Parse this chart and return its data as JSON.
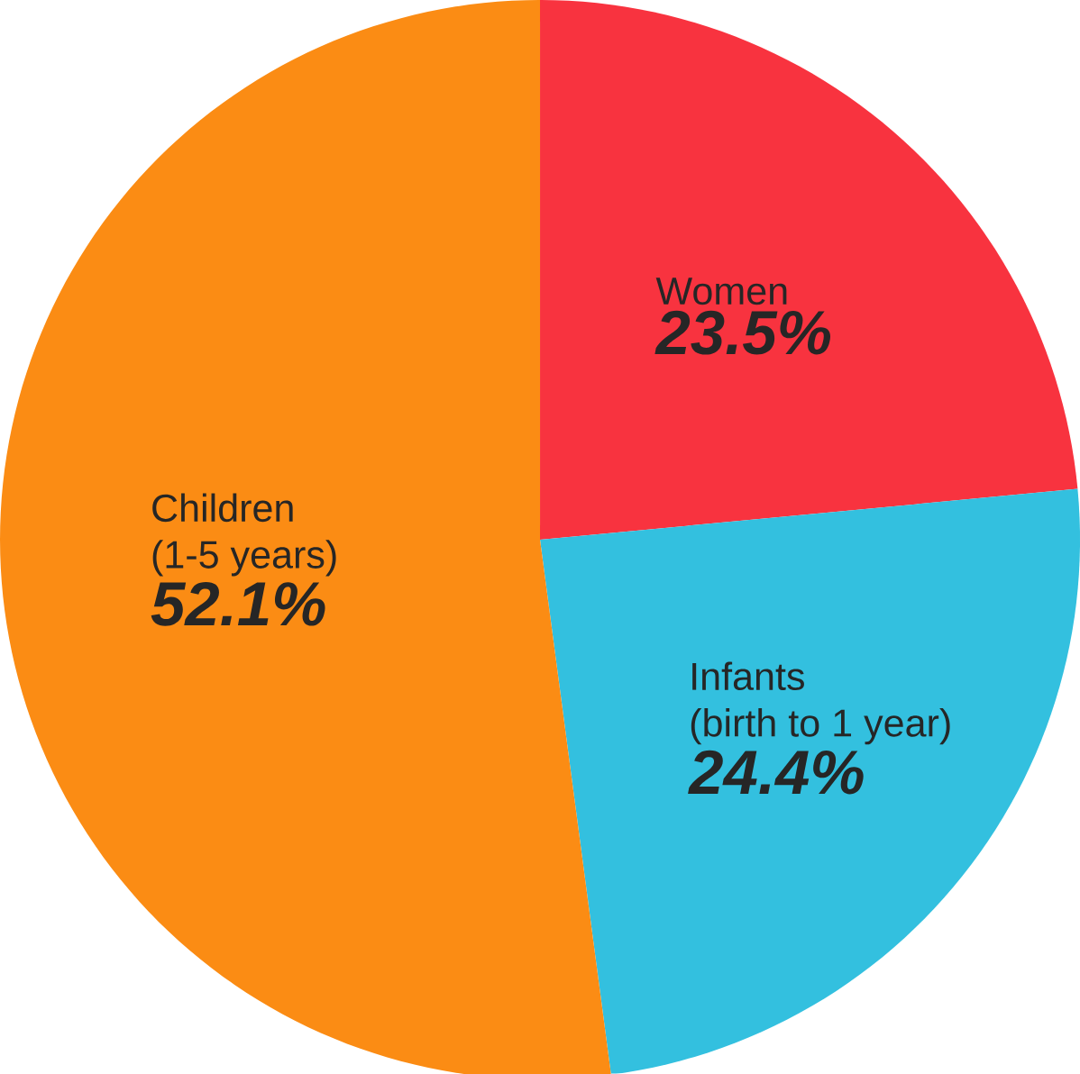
{
  "chart_data": {
    "type": "pie",
    "categories": [
      "Women",
      "Infants (birth to 1 year)",
      "Children (1-5 years)"
    ],
    "values": [
      23.5,
      24.4,
      52.1
    ],
    "value_labels": [
      "23.5%",
      "24.4%",
      "52.1%"
    ],
    "colors": [
      "#f8333f",
      "#33c0df",
      "#fb8c14"
    ]
  }
}
